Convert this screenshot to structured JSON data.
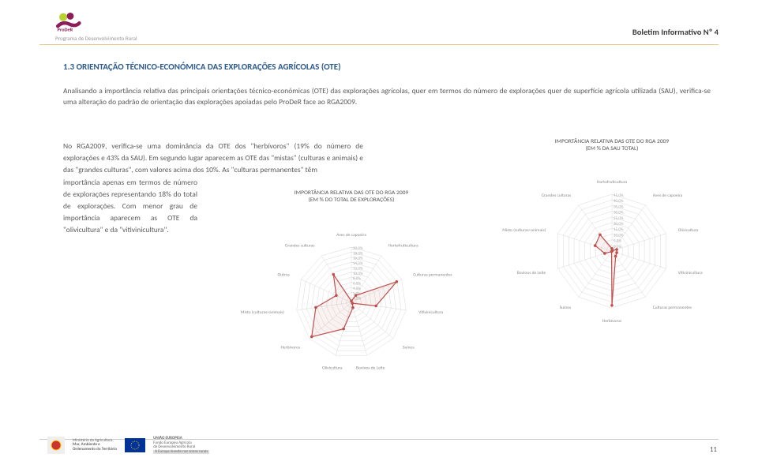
{
  "header": {
    "logo_caption": "Programa de Desenvolvimento Rural",
    "bulletin": "Boletim Informativo Nº 4"
  },
  "section": {
    "title": "1.3 ORIENTAÇÃO TÉCNICO-ECONÓMICA DAS EXPLORAÇÕES AGRÍCOLAS (OTE)",
    "para1": "Analisando a importância relativa das principais orientações técnico-económicas (OTE) das explorações agrícolas, quer em termos do número de explorações quer de superfície agrícola utilizada (SAU), verifica-se uma alteração do padrão de orientação das explorações apoiadas pelo ProDeR face ao RGA2009.",
    "para2a": "No RGA2009, verifica-se uma dominância da OTE dos \"herbívoros\" (19% do número de explorações e 43% da SAU). Em segundo lugar aparecem as OTE das \"mistas\" (culturas e animais) e das \"grandes culturas\", com valores acima dos 10%. As \"culturas permanentes\" têm",
    "para2b": "importância apenas em termos de número de explorações representando 18% do total de explorações. Com menor grau de importância aparecem as OTE da \"olivicultura\" e da \"vitivinicultura\"."
  },
  "radar1": {
    "title_line1": "IMPORTÂNCIA RELATIVA DAS OTE DO RGA 2009",
    "title_line2": "(EM % DO TOTAL DE EXPLORAÇÕES)",
    "axes": [
      "Aves de capoeira",
      "Hortofruticultura",
      "Culturas permanentes",
      "Vitivinicultura",
      "Suínos",
      "Bovinos de Leite",
      "Olivicultura",
      "Herbívoros",
      "Misto (culturas+animais)",
      "Outros",
      "Grandes culturas"
    ],
    "ticks": [
      "20,0%",
      "18,0%",
      "16,0%",
      "14,0%",
      "12,0%",
      "10,0%",
      "8,0%",
      "6,0%",
      "4,0%",
      "2,0%",
      "0,0%"
    ],
    "max": 20,
    "values": [
      0.5,
      3,
      18,
      9,
      0.5,
      2,
      10,
      19,
      13,
      6,
      12
    ],
    "grid_color": "#d9d9d9",
    "line_color": "#c0504d",
    "fill_opacity": 0.08,
    "bg": "#ffffff"
  },
  "radar2": {
    "title_line1": "IMPORTÂNCIA RELATIVA DAS OTE DO RGA 2009",
    "title_line2": "(EM % DA SAU TOTAL)",
    "axes": [
      "Hortofruticultura",
      "Aves de capoeira",
      "Olivicultura",
      "Vitivinicultura",
      "Culturas permanentes",
      "Herbívoros",
      "Suínos",
      "Bovinos de Leite",
      "Misto (culturas+animais)",
      "Grandes culturas"
    ],
    "ticks": [
      "45,0%",
      "40,0%",
      "35,0%",
      "30,0%",
      "25,0%",
      "20,0%",
      "15,0%",
      "10,0%",
      "5,0%",
      "0,0%"
    ],
    "max": 45,
    "values": [
      2,
      0.5,
      4,
      4,
      5,
      43,
      0.5,
      6,
      14,
      16
    ],
    "grid_color": "#d9d9d9",
    "line_color": "#c0504d",
    "fill_opacity": 0.08,
    "bg": "#ffffff"
  },
  "footer": {
    "eu_label": "UNIÃO EUROPEIA",
    "fund_label1": "Fundo Europeu Agrícola",
    "fund_label2": "de Desenvolvimento Rural",
    "fund_label3": "A Europa investe nas zonas rurais",
    "ministry1": "Ministério da Agricultura,",
    "ministry2": "Mar, Ambiente e",
    "ministry3": "Ordenamento do Território",
    "page_no": "11"
  },
  "colors": {
    "title": "#2c5a8a",
    "text": "#5a5a5a",
    "accent_line": "#e6c88a"
  }
}
